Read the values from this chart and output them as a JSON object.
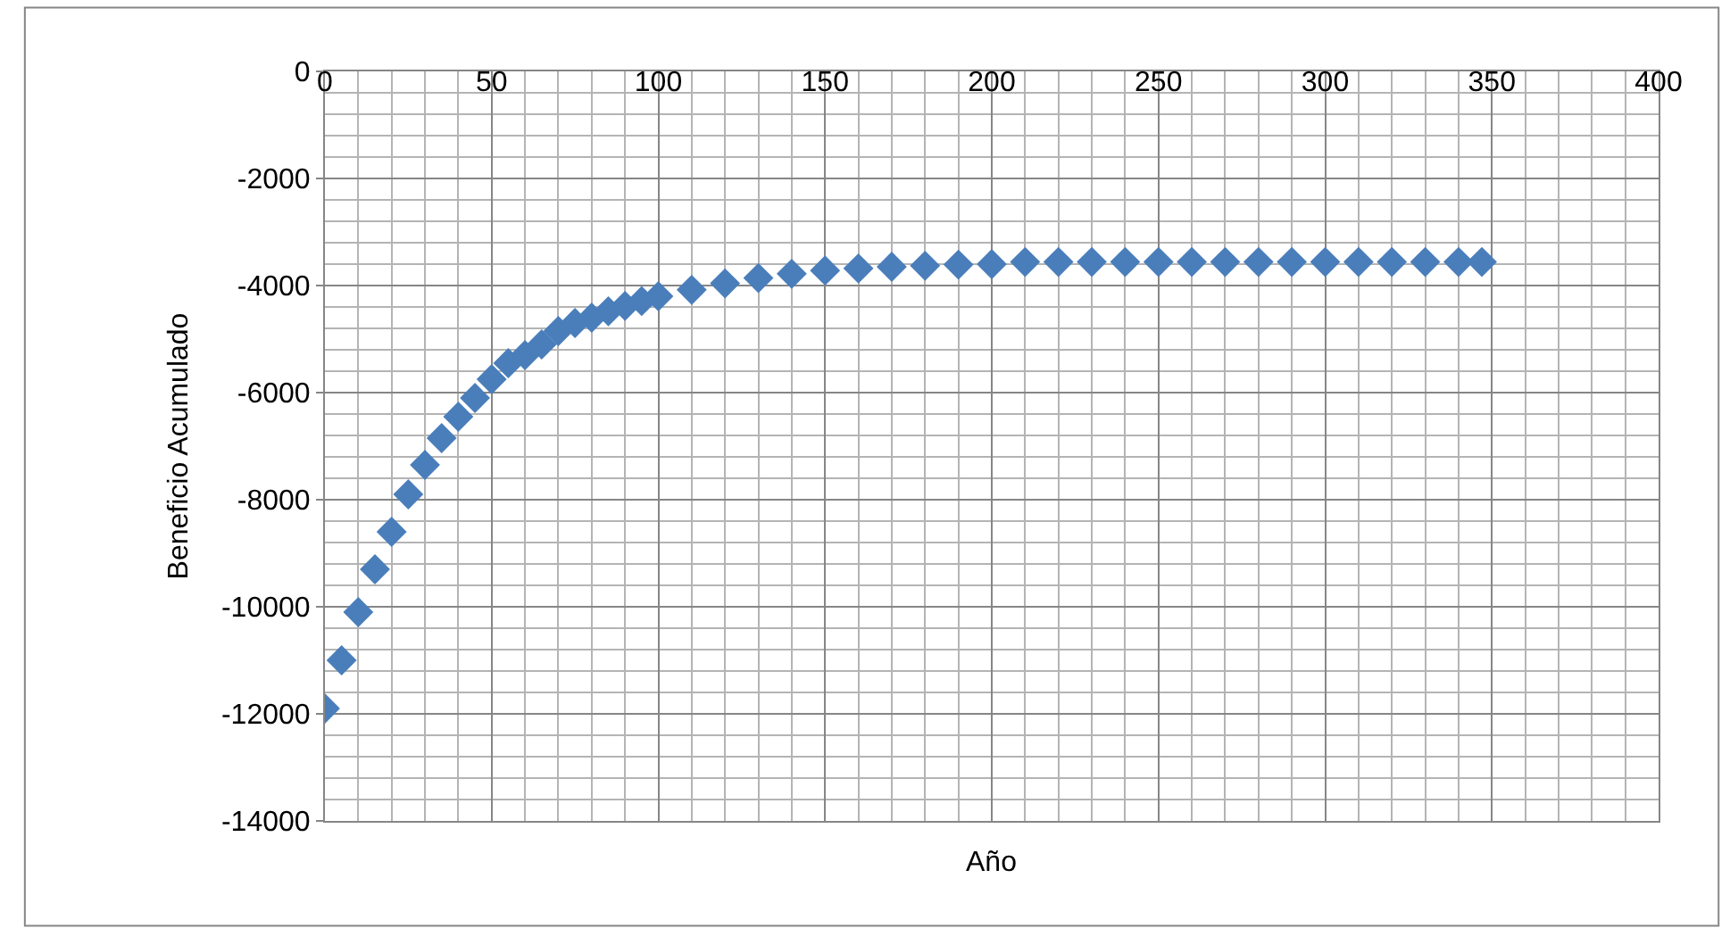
{
  "chart_data": {
    "type": "scatter",
    "xlabel": "Año",
    "ylabel": "Beneficio Acumulado",
    "x": [
      0,
      5,
      10,
      15,
      20,
      25,
      30,
      35,
      40,
      45,
      50,
      55,
      60,
      65,
      70,
      75,
      80,
      85,
      90,
      95,
      100,
      110,
      120,
      130,
      140,
      150,
      160,
      170,
      180,
      190,
      200,
      210,
      220,
      230,
      240,
      250,
      260,
      270,
      280,
      290,
      300,
      310,
      320,
      330,
      340,
      347
    ],
    "series": [
      {
        "color": "#4a7ebb",
        "values": [
          -11900,
          -11000,
          -10100,
          -9300,
          -8600,
          -7900,
          -7350,
          -6850,
          -6450,
          -6100,
          -5750,
          -5450,
          -5300,
          -5100,
          -4850,
          -4700,
          -4600,
          -4480,
          -4380,
          -4290,
          -4200,
          -4080,
          -3960,
          -3860,
          -3780,
          -3720,
          -3680,
          -3650,
          -3630,
          -3610,
          -3600,
          -3560,
          -3560,
          -3560,
          -3560,
          -3560,
          -3560,
          -3560,
          -3560,
          -3560,
          -3560,
          -3560,
          -3560,
          -3560,
          -3560,
          -3560
        ]
      }
    ],
    "xlim": [
      0,
      400
    ],
    "xticks": [
      0,
      50,
      100,
      150,
      200,
      250,
      300,
      350,
      400
    ],
    "ylim": [
      -14000,
      0
    ],
    "yticks": [
      -14000,
      -12000,
      -10000,
      -8000,
      -6000,
      -4000,
      -2000,
      0
    ],
    "grid": true,
    "marker": "diamond"
  }
}
